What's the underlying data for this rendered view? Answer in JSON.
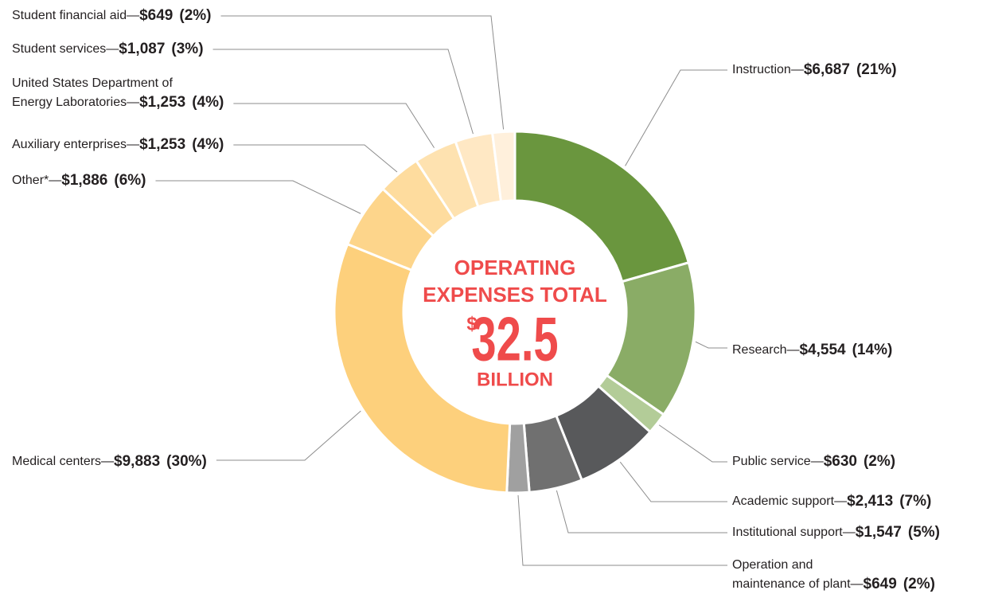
{
  "chart_data": {
    "type": "donut",
    "categories": [
      "Instruction",
      "Research",
      "Public service",
      "Academic support",
      "Institutional support",
      "Operation and maintenance of plant",
      "Medical centers",
      "Other*",
      "Auxiliary enterprises",
      "United States Department of Energy Laboratories",
      "Student services",
      "Student financial aid"
    ],
    "values": [
      6687,
      4554,
      630,
      2413,
      1547,
      649,
      9883,
      1886,
      1253,
      1253,
      1087,
      649
    ],
    "value_labels": [
      "$6,687",
      "$4,554",
      "$630",
      "$2,413",
      "$1,547",
      "$649",
      "$9,883",
      "$1,886",
      "$1,253",
      "$1,253",
      "$1,087",
      "$649"
    ],
    "percent_labels": [
      "(21%)",
      "(14%)",
      "(2%)",
      "(7%)",
      "(5%)",
      "(2%)",
      "(30%)",
      "(6%)",
      "(4%)",
      "(4%)",
      "(3%)",
      "(2%)"
    ],
    "colors": [
      "#6a963e",
      "#8aac66",
      "#b3cc98",
      "#58595b",
      "#707070",
      "#a0a0a0",
      "#fdd07c",
      "#fdd58b",
      "#fedc9e",
      "#fee2b0",
      "#ffe8c4",
      "#fff0dc"
    ],
    "separator": "—",
    "center": {
      "lines": [
        "OPERATING",
        "EXPENSES TOTAL"
      ],
      "currency": "$",
      "amount": 32.5,
      "unit": "BILLION"
    }
  }
}
